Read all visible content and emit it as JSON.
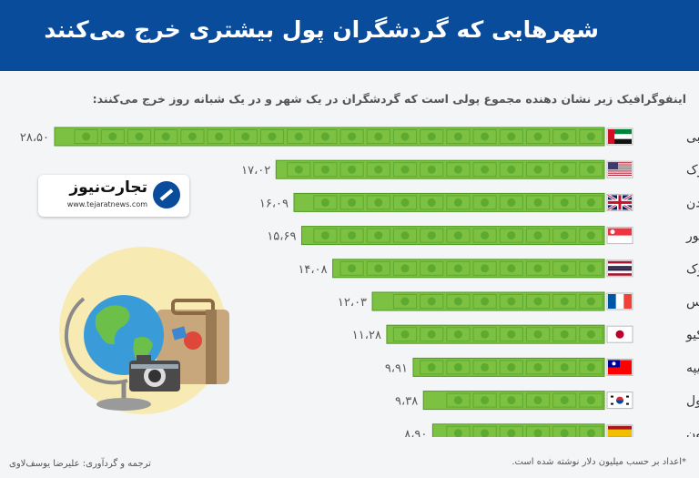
{
  "header": {
    "title": "شهرهایی که گردشگران پول بیشتری خرج می‌کنند"
  },
  "subtitle": "اینفوگرافیک زیر نشان دهنده مجموع پولی است که گردشگران در یک شهر و در یک شبانه روز خرج می‌کنند:",
  "logo": {
    "brand": "تجارت‌نیوز",
    "site": "www.tejaratnews.com"
  },
  "footer": {
    "credit": "ترجمه و گردآوری: علیرضا یوسف‌لاوی",
    "note": "*اعداد بر حسب میلیون دلار نوشته شده است."
  },
  "colors": {
    "header": "#0a4c9c",
    "bill": "#7cc142",
    "bill_border": "#4e9a22",
    "bill_dark": "#5ea92f"
  },
  "chart_data": {
    "type": "bar",
    "orientation": "horizontal",
    "title": "",
    "xlabel": "",
    "ylabel": "",
    "categories": [
      "دبی",
      "نیویورک",
      "لندن",
      "سنگاپور",
      "بانکوک",
      "پاریس",
      "توکیو",
      "تایپه",
      "سئول",
      "بارسلون"
    ],
    "values": [
      28.5,
      17.02,
      16.09,
      15.69,
      14.08,
      12.03,
      11.28,
      9.91,
      9.38,
      8.9
    ],
    "value_labels": [
      "۲۸،۵۰",
      "۱۷،۰۲",
      "۱۶،۰۹",
      "۱۵،۶۹",
      "۱۴،۰۸",
      "۱۲،۰۳",
      "۱۱،۲۸",
      "۹،۹۱",
      "۹،۳۸",
      "۸،۹۰"
    ],
    "flags": [
      "uae-flag-icon",
      "usa-flag-icon",
      "uk-flag-icon",
      "singapore-flag-icon",
      "thailand-flag-icon",
      "france-flag-icon",
      "japan-flag-icon",
      "taiwan-flag-icon",
      "south-korea-flag-icon",
      "spain-flag-icon"
    ],
    "xlim": [
      0,
      28.5
    ],
    "grid": false
  }
}
